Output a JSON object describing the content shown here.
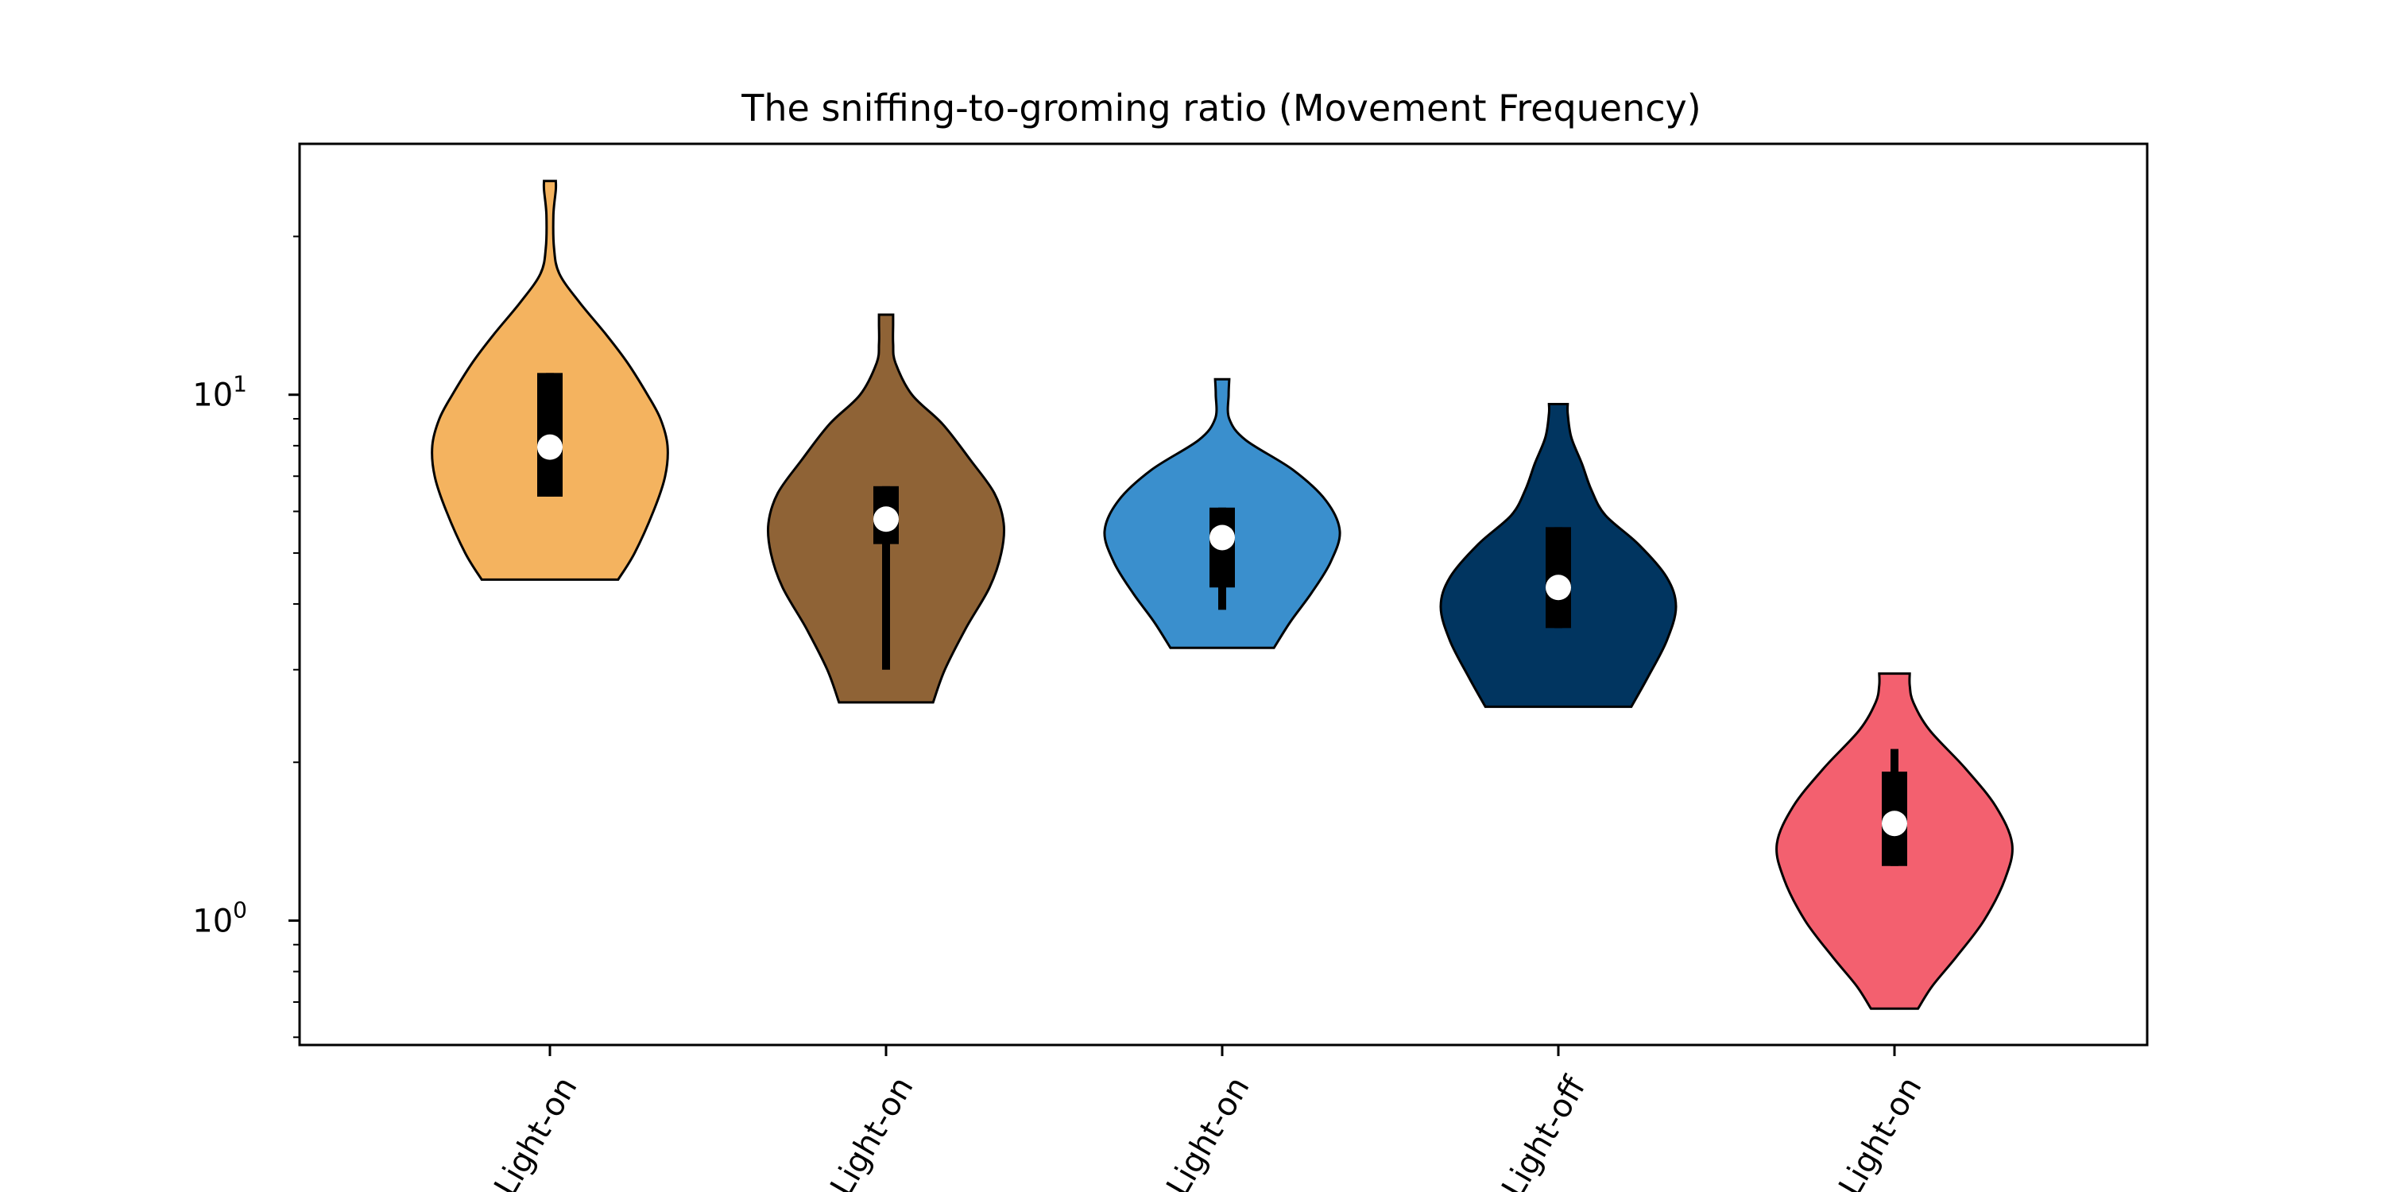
{
  "chart_data": {
    "type": "violin",
    "title": "The sniffing-to-groming ratio (Movement Frequency)",
    "xlabel": "",
    "ylabel": "",
    "yscale": "log",
    "ylim": [
      0.58,
      30
    ],
    "yticks": [
      {
        "value": 1,
        "base": "10",
        "exp": "0"
      },
      {
        "value": 10,
        "base": "10",
        "exp": "1"
      }
    ],
    "grid": false,
    "legend": "none",
    "categories": [
      "Light-on",
      "Light-on",
      "Light-on",
      "Light-off",
      "Light-on"
    ],
    "series": [
      {
        "color": "#F4B35F",
        "min": 4.45,
        "max": 25.5,
        "q1": 6.4,
        "median": 7.95,
        "q3": 11.0,
        "whisker_low": 6.4,
        "whisker_high": 11.0,
        "density": [
          [
            4.45,
            0.58
          ],
          [
            5.0,
            0.72
          ],
          [
            6.0,
            0.88
          ],
          [
            7.0,
            0.98
          ],
          [
            8.0,
            1.0
          ],
          [
            9.0,
            0.94
          ],
          [
            10.0,
            0.83
          ],
          [
            11.5,
            0.66
          ],
          [
            13.0,
            0.48
          ],
          [
            15.0,
            0.25
          ],
          [
            17.0,
            0.08
          ],
          [
            19.0,
            0.035
          ],
          [
            22.0,
            0.03
          ],
          [
            24.5,
            0.05
          ],
          [
            25.5,
            0.05
          ]
        ]
      },
      {
        "color": "#8F6336",
        "min": 2.6,
        "max": 14.2,
        "q1": 5.2,
        "median": 5.8,
        "q3": 6.7,
        "whisker_low": 3.0,
        "whisker_high": 6.7,
        "density": [
          [
            2.6,
            0.4
          ],
          [
            3.0,
            0.5
          ],
          [
            3.6,
            0.68
          ],
          [
            4.3,
            0.88
          ],
          [
            5.0,
            0.98
          ],
          [
            5.7,
            1.0
          ],
          [
            6.5,
            0.92
          ],
          [
            7.5,
            0.72
          ],
          [
            8.8,
            0.48
          ],
          [
            10.0,
            0.22
          ],
          [
            11.5,
            0.08
          ],
          [
            12.5,
            0.06
          ],
          [
            13.6,
            0.06
          ],
          [
            14.2,
            0.06
          ]
        ]
      },
      {
        "color": "#3A8FCD",
        "min": 3.3,
        "max": 10.7,
        "q1": 4.3,
        "median": 5.35,
        "q3": 6.1,
        "whisker_low": 3.9,
        "whisker_high": 6.1,
        "density": [
          [
            3.3,
            0.44
          ],
          [
            3.7,
            0.58
          ],
          [
            4.2,
            0.76
          ],
          [
            4.8,
            0.92
          ],
          [
            5.5,
            1.0
          ],
          [
            6.3,
            0.88
          ],
          [
            7.2,
            0.6
          ],
          [
            8.2,
            0.2
          ],
          [
            9.0,
            0.06
          ],
          [
            10.0,
            0.055
          ],
          [
            10.7,
            0.06
          ]
        ]
      },
      {
        "color": "#013560",
        "min": 2.55,
        "max": 9.6,
        "q1": 3.6,
        "median": 4.3,
        "q3": 5.6,
        "whisker_low": 3.6,
        "whisker_high": 5.6,
        "density": [
          [
            2.55,
            0.62
          ],
          [
            2.9,
            0.76
          ],
          [
            3.4,
            0.92
          ],
          [
            3.95,
            1.0
          ],
          [
            4.5,
            0.92
          ],
          [
            5.2,
            0.68
          ],
          [
            5.9,
            0.4
          ],
          [
            6.6,
            0.28
          ],
          [
            7.4,
            0.2
          ],
          [
            8.3,
            0.11
          ],
          [
            9.2,
            0.08
          ],
          [
            9.6,
            0.08
          ]
        ]
      },
      {
        "color": "#F3606F",
        "min": 0.68,
        "max": 2.95,
        "q1": 1.27,
        "median": 1.53,
        "q3": 1.92,
        "whisker_low": 1.27,
        "whisker_high": 2.12,
        "density": [
          [
            0.68,
            0.2
          ],
          [
            0.75,
            0.32
          ],
          [
            0.85,
            0.52
          ],
          [
            1.0,
            0.76
          ],
          [
            1.2,
            0.94
          ],
          [
            1.4,
            1.0
          ],
          [
            1.65,
            0.86
          ],
          [
            1.95,
            0.6
          ],
          [
            2.3,
            0.3
          ],
          [
            2.6,
            0.16
          ],
          [
            2.8,
            0.13
          ],
          [
            2.95,
            0.13
          ]
        ]
      }
    ]
  }
}
